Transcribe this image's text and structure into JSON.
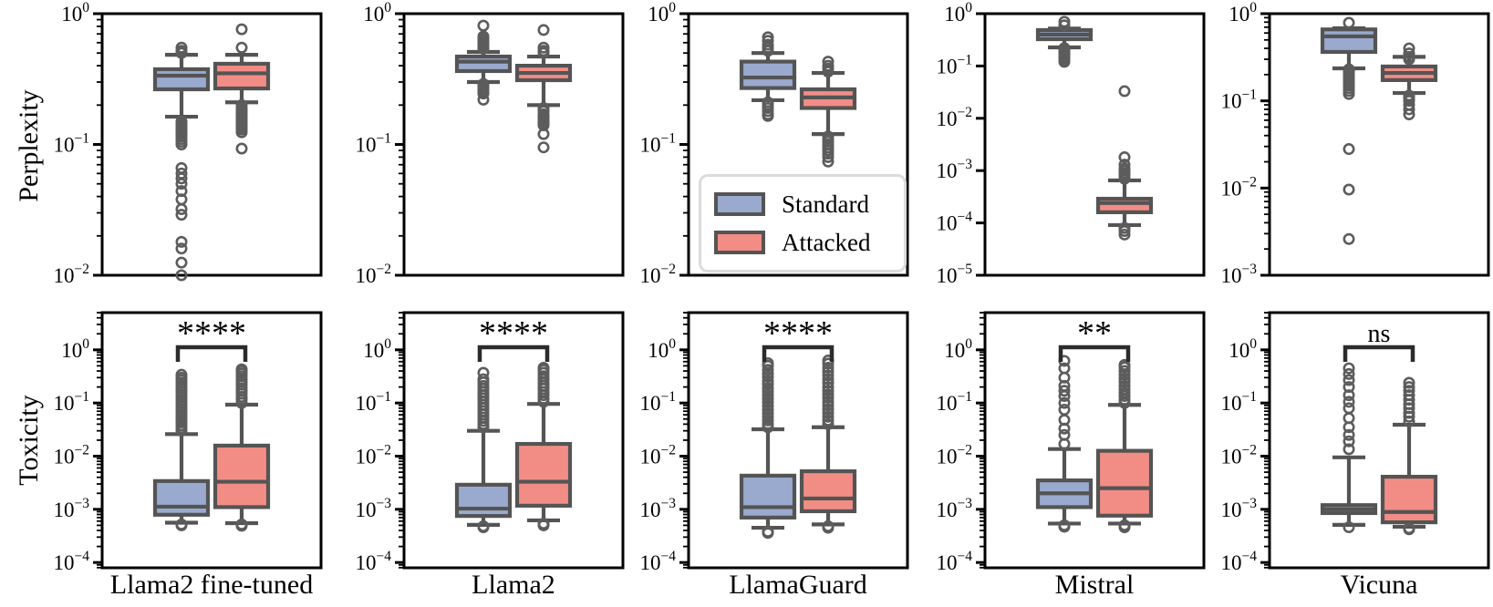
{
  "chart_data": {
    "type": "box",
    "title": "",
    "scale": "log-y",
    "legend": {
      "location": "inside top row, LlamaGuard panel, lower left",
      "items": [
        {
          "label": "Standard",
          "color": "#9AAACE"
        },
        {
          "label": "Attacked",
          "color": "#F28D86"
        }
      ]
    },
    "style": {
      "box_edge": "#545454",
      "outlier_edge": "#5c5c5c",
      "frame": "#000000",
      "bracket": "#2b2b2b"
    },
    "rows": [
      {
        "ylabel": "Perplexity",
        "panels": [
          {
            "model": "Llama2 fine-tuned",
            "ylim_exp": [
              0,
              -2
            ],
            "yticks_exp": [
              0,
              -1,
              -2
            ],
            "minor_ticks": true,
            "significance": null,
            "boxes": [
              {
                "series": "Standard",
                "whisker_low": 0.163,
                "q1": 0.264,
                "median": 0.336,
                "q3": 0.376,
                "whisker_high": 0.485,
                "outliers": [
                  0.5,
                  0.52,
                  0.55,
                  0.15,
                  0.145,
                  0.14,
                  0.135,
                  0.13,
                  0.125,
                  0.12,
                  0.115,
                  0.11,
                  0.105,
                  0.1,
                  0.066,
                  0.06,
                  0.055,
                  0.05,
                  0.044,
                  0.038,
                  0.032,
                  0.029,
                  0.018,
                  0.016,
                  0.0125,
                  0.01
                ]
              },
              {
                "series": "Attacked",
                "whisker_low": 0.21,
                "q1": 0.268,
                "median": 0.35,
                "q3": 0.414,
                "whisker_high": 0.485,
                "outliers": [
                  0.55,
                  0.76,
                  0.2,
                  0.19,
                  0.185,
                  0.18,
                  0.175,
                  0.17,
                  0.165,
                  0.16,
                  0.155,
                  0.15,
                  0.145,
                  0.14,
                  0.135,
                  0.13,
                  0.124,
                  0.093
                ]
              }
            ]
          },
          {
            "model": "Llama2",
            "ylim_exp": [
              0,
              -2
            ],
            "yticks_exp": [
              0,
              -1,
              -2
            ],
            "minor_ticks": true,
            "significance": null,
            "boxes": [
              {
                "series": "Standard",
                "whisker_low": 0.3,
                "q1": 0.364,
                "median": 0.43,
                "q3": 0.47,
                "whisker_high": 0.51,
                "outliers": [
                  0.54,
                  0.56,
                  0.58,
                  0.6,
                  0.62,
                  0.645,
                  0.67,
                  0.81,
                  0.29,
                  0.285,
                  0.28,
                  0.27,
                  0.26,
                  0.25,
                  0.245,
                  0.22
                ]
              },
              {
                "series": "Attacked",
                "whisker_low": 0.2,
                "q1": 0.31,
                "median": 0.352,
                "q3": 0.4,
                "whisker_high": 0.47,
                "outliers": [
                  0.5,
                  0.52,
                  0.55,
                  0.75,
                  0.19,
                  0.18,
                  0.17,
                  0.165,
                  0.16,
                  0.155,
                  0.15,
                  0.145,
                  0.14,
                  0.12,
                  0.095
                ]
              }
            ]
          },
          {
            "model": "LlamaGuard",
            "ylim_exp": [
              0,
              -2
            ],
            "yticks_exp": [
              0,
              -1,
              -2
            ],
            "minor_ticks": true,
            "significance": null,
            "boxes": [
              {
                "series": "Standard",
                "whisker_low": 0.218,
                "q1": 0.27,
                "median": 0.325,
                "q3": 0.43,
                "whisker_high": 0.5,
                "outliers": [
                  0.52,
                  0.55,
                  0.58,
                  0.62,
                  0.66,
                  0.21,
                  0.2,
                  0.19,
                  0.18,
                  0.17,
                  0.165
                ]
              },
              {
                "series": "Attacked",
                "whisker_low": 0.12,
                "q1": 0.19,
                "median": 0.229,
                "q3": 0.264,
                "whisker_high": 0.352,
                "outliers": [
                  0.36,
                  0.38,
                  0.4,
                  0.43,
                  0.115,
                  0.11,
                  0.105,
                  0.1,
                  0.095,
                  0.09,
                  0.085,
                  0.08,
                  0.074
                ]
              }
            ]
          },
          {
            "model": "Mistral",
            "ylim_exp": [
              0,
              -5
            ],
            "yticks_exp": [
              0,
              -1,
              -2,
              -3,
              -4,
              -5
            ],
            "minor_ticks": false,
            "significance": null,
            "boxes": [
              {
                "series": "Standard",
                "whisker_low": 0.227,
                "q1": 0.325,
                "median": 0.4,
                "q3": 0.486,
                "whisker_high": 0.52,
                "outliers": [
                  0.6,
                  0.7,
                  0.22,
                  0.21,
                  0.2,
                  0.19,
                  0.18,
                  0.17,
                  0.16,
                  0.15,
                  0.14,
                  0.13,
                  0.12
                ]
              },
              {
                "series": "Attacked",
                "whisker_low": 9.1e-05,
                "q1": 0.00016,
                "median": 0.00024,
                "q3": 0.00029,
                "whisker_high": 0.00065,
                "outliers": [
                  0.0007,
                  0.0008,
                  0.0009,
                  0.001,
                  0.0011,
                  0.0013,
                  0.0018,
                  0.033,
                  8e-05,
                  7e-05,
                  6e-05
                ]
              }
            ]
          },
          {
            "model": "Vicuna",
            "ylim_exp": [
              0,
              -3
            ],
            "yticks_exp": [
              0,
              -1,
              -2,
              -3
            ],
            "minor_ticks": true,
            "significance": null,
            "boxes": [
              {
                "series": "Standard",
                "whisker_low": 0.236,
                "q1": 0.364,
                "median": 0.55,
                "q3": 0.66,
                "whisker_high": 0.68,
                "outliers": [
                  0.787,
                  0.23,
                  0.22,
                  0.21,
                  0.2,
                  0.19,
                  0.18,
                  0.17,
                  0.16,
                  0.15,
                  0.14,
                  0.13,
                  0.12,
                  0.028,
                  0.0096,
                  0.0026
                ]
              },
              {
                "series": "Attacked",
                "whisker_low": 0.123,
                "q1": 0.173,
                "median": 0.209,
                "q3": 0.248,
                "whisker_high": 0.32,
                "outliers": [
                  0.3,
                  0.32,
                  0.35,
                  0.4,
                  0.115,
                  0.11,
                  0.105,
                  0.1,
                  0.09,
                  0.08,
                  0.07
                ]
              }
            ]
          }
        ]
      },
      {
        "ylabel": "Toxicity",
        "panels": [
          {
            "model": "Llama2 fine-tuned",
            "ylim_exp": [
              0.7,
              -4.1
            ],
            "yticks_exp": [
              0,
              -1,
              -2,
              -3,
              -4
            ],
            "minor_ticks": true,
            "significance": "****",
            "boxes": [
              {
                "series": "Standard",
                "whisker_low": 0.00056,
                "q1": 0.00079,
                "median": 0.00112,
                "q3": 0.0034,
                "whisker_high": 0.026,
                "outliers": [
                  0.03,
                  0.034,
                  0.038,
                  0.043,
                  0.048,
                  0.054,
                  0.061,
                  0.069,
                  0.078,
                  0.088,
                  0.1,
                  0.113,
                  0.128,
                  0.145,
                  0.164,
                  0.185,
                  0.21,
                  0.24,
                  0.27,
                  0.3,
                  0.34,
                  0.00052,
                  0.0005
                ]
              },
              {
                "series": "Attacked",
                "whisker_low": 0.00055,
                "q1": 0.0011,
                "median": 0.0033,
                "q3": 0.0158,
                "whisker_high": 0.093,
                "outliers": [
                  0.1,
                  0.115,
                  0.13,
                  0.15,
                  0.17,
                  0.19,
                  0.22,
                  0.25,
                  0.28,
                  0.32,
                  0.36,
                  0.4,
                  0.43,
                  0.00052,
                  0.00049
                ]
              }
            ]
          },
          {
            "model": "Llama2",
            "ylim_exp": [
              0.7,
              -4.1
            ],
            "yticks_exp": [
              0,
              -1,
              -2,
              -3,
              -4
            ],
            "minor_ticks": true,
            "significance": "****",
            "boxes": [
              {
                "series": "Standard",
                "whisker_low": 0.00051,
                "q1": 0.00075,
                "median": 0.00103,
                "q3": 0.0029,
                "whisker_high": 0.03,
                "outliers": [
                  0.035,
                  0.04,
                  0.046,
                  0.053,
                  0.061,
                  0.07,
                  0.08,
                  0.092,
                  0.106,
                  0.122,
                  0.14,
                  0.16,
                  0.185,
                  0.21,
                  0.245,
                  0.28,
                  0.37,
                  0.00048,
                  0.00046
                ]
              },
              {
                "series": "Attacked",
                "whisker_low": 0.00062,
                "q1": 0.00117,
                "median": 0.0033,
                "q3": 0.017,
                "whisker_high": 0.096,
                "outliers": [
                  0.105,
                  0.12,
                  0.14,
                  0.16,
                  0.185,
                  0.21,
                  0.24,
                  0.28,
                  0.32,
                  0.37,
                  0.42,
                  0.46,
                  0.00054,
                  0.0005
                ]
              }
            ]
          },
          {
            "model": "LlamaGuard",
            "ylim_exp": [
              0.7,
              -4.1
            ],
            "yticks_exp": [
              0,
              -1,
              -2,
              -3,
              -4
            ],
            "minor_ticks": true,
            "significance": "****",
            "boxes": [
              {
                "series": "Standard",
                "whisker_low": 0.00045,
                "q1": 0.0007,
                "median": 0.0011,
                "q3": 0.0043,
                "whisker_high": 0.032,
                "outliers": [
                  0.035,
                  0.04,
                  0.047,
                  0.055,
                  0.064,
                  0.075,
                  0.088,
                  0.103,
                  0.12,
                  0.14,
                  0.165,
                  0.19,
                  0.225,
                  0.26,
                  0.31,
                  0.36,
                  0.42,
                  0.5,
                  0.56,
                  0.00038,
                  0.00036
                ]
              },
              {
                "series": "Attacked",
                "whisker_low": 0.00052,
                "q1": 0.00092,
                "median": 0.0016,
                "q3": 0.0052,
                "whisker_high": 0.035,
                "outliers": [
                  0.04,
                  0.047,
                  0.055,
                  0.065,
                  0.076,
                  0.09,
                  0.105,
                  0.125,
                  0.145,
                  0.17,
                  0.2,
                  0.24,
                  0.28,
                  0.33,
                  0.39,
                  0.46,
                  0.55,
                  0.63,
                  0.00048,
                  0.00045
                ]
              }
            ]
          },
          {
            "model": "Mistral",
            "ylim_exp": [
              0.7,
              -4.1
            ],
            "yticks_exp": [
              0,
              -1,
              -2,
              -3,
              -4
            ],
            "minor_ticks": true,
            "significance": "**",
            "boxes": [
              {
                "series": "Standard",
                "whisker_low": 0.00054,
                "q1": 0.0011,
                "median": 0.002,
                "q3": 0.0035,
                "whisker_high": 0.0136,
                "outliers": [
                  0.017,
                  0.025,
                  0.033,
                  0.048,
                  0.075,
                  0.1,
                  0.135,
                  0.17,
                  0.21,
                  0.3,
                  0.45,
                  0.62,
                  0.0005,
                  0.00047
                ]
              },
              {
                "series": "Attacked",
                "whisker_low": 0.00054,
                "q1": 0.00076,
                "median": 0.0025,
                "q3": 0.0126,
                "whisker_high": 0.092,
                "outliers": [
                  0.1,
                  0.115,
                  0.135,
                  0.155,
                  0.18,
                  0.21,
                  0.25,
                  0.29,
                  0.34,
                  0.4,
                  0.47,
                  0.52,
                  0.0005,
                  0.00046
                ]
              }
            ]
          },
          {
            "model": "Vicuna",
            "ylim_exp": [
              0.7,
              -4.1
            ],
            "yticks_exp": [
              0,
              -1,
              -2,
              -3,
              -4
            ],
            "minor_ticks": true,
            "significance": "ns",
            "boxes": [
              {
                "series": "Standard",
                "whisker_low": 0.00051,
                "q1": 0.00085,
                "median": 0.001,
                "q3": 0.0012,
                "whisker_high": 0.0095,
                "outliers": [
                  0.0135,
                  0.019,
                  0.025,
                  0.035,
                  0.052,
                  0.08,
                  0.105,
                  0.14,
                  0.2,
                  0.27,
                  0.35,
                  0.45,
                  0.00046
                ]
              },
              {
                "series": "Attacked",
                "whisker_low": 0.00047,
                "q1": 0.00057,
                "median": 0.00089,
                "q3": 0.0041,
                "whisker_high": 0.039,
                "outliers": [
                  0.045,
                  0.055,
                  0.065,
                  0.08,
                  0.095,
                  0.115,
                  0.14,
                  0.17,
                  0.2,
                  0.24,
                  0.00044,
                  0.00042
                ]
              }
            ]
          }
        ]
      }
    ]
  }
}
